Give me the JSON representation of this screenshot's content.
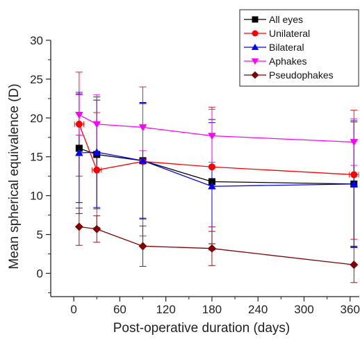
{
  "chart_data": {
    "type": "line",
    "title": "",
    "xlabel": "Post-operative duration (days)",
    "ylabel": "Mean spherical equivalence (D)",
    "xlim": [
      -30,
      372
    ],
    "ylim": [
      -3,
      30
    ],
    "xticks": [
      0,
      60,
      120,
      180,
      240,
      300,
      360
    ],
    "yticks": [
      0,
      5,
      10,
      15,
      20,
      25,
      30
    ],
    "legend_position": "top-right",
    "grid": false,
    "series": [
      {
        "name": "All eyes",
        "color": "#000000",
        "marker": "square",
        "x": [
          7,
          30,
          90,
          180,
          365
        ],
        "y": [
          16.1,
          15.3,
          14.5,
          11.8,
          11.5
        ],
        "yerr": [
          7.0,
          7.0,
          7.5,
          8.0,
          8.0
        ]
      },
      {
        "name": "Unilateral",
        "color": "#ff0000",
        "marker": "circle",
        "x": [
          7,
          30,
          90,
          180,
          365
        ],
        "y": [
          19.2,
          13.3,
          14.4,
          13.7,
          12.7
        ],
        "yerr": [
          6.7,
          7.4,
          9.6,
          7.7,
          8.3
        ],
        "xerr": [
          6,
          6,
          0,
          0,
          6
        ]
      },
      {
        "name": "Bilateral",
        "color": "#0000ff",
        "marker": "triangle-up",
        "x": [
          7,
          30,
          90,
          180,
          365
        ],
        "y": [
          15.5,
          15.6,
          14.5,
          11.2,
          11.5
        ],
        "yerr": [
          7.8,
          7.1,
          7.4,
          8.2,
          8.2
        ]
      },
      {
        "name": "Aphakes",
        "color": "#ff00ff",
        "marker": "triangle-down",
        "x": [
          7,
          30,
          90,
          180,
          365
        ],
        "y": [
          20.4,
          19.2,
          18.8,
          17.7,
          16.9
        ],
        "yerr": [
          2.6,
          3.8,
          3.0,
          3.4,
          3.0
        ]
      },
      {
        "name": "Pseudophakes",
        "color": "#800000",
        "marker": "diamond",
        "x": [
          7,
          30,
          90,
          180,
          365
        ],
        "y": [
          6.0,
          5.7,
          3.5,
          3.2,
          1.1
        ],
        "yerr": [
          2.4,
          1.7,
          2.6,
          2.2,
          2.3
        ]
      }
    ]
  }
}
